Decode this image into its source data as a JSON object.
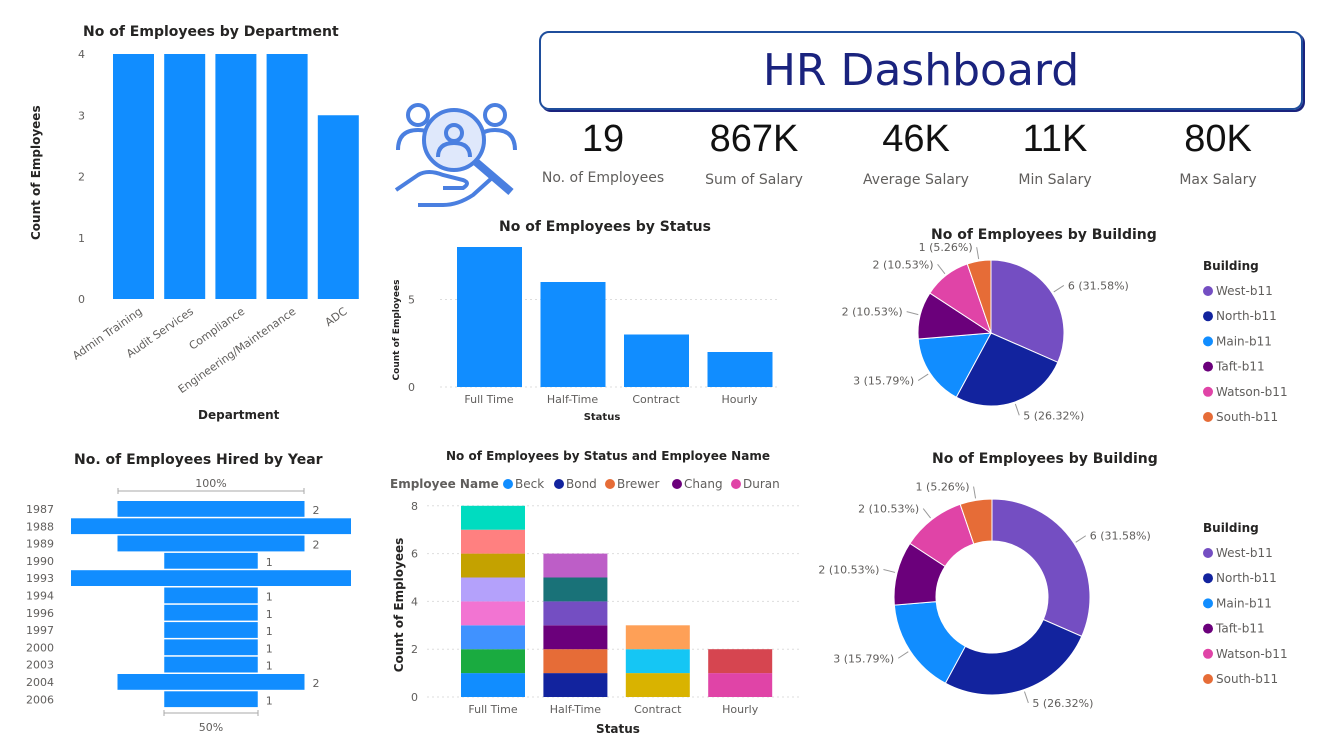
{
  "header": {
    "title": "HR Dashboard"
  },
  "kpis": [
    {
      "value": "19",
      "label": "No. of Employees"
    },
    {
      "value": "867K",
      "label": "Sum of Salary"
    },
    {
      "value": "46K",
      "label": "Average Salary"
    },
    {
      "value": "11K",
      "label": "Min Salary"
    },
    {
      "value": "80K",
      "label": "Max Salary"
    }
  ],
  "colors": {
    "bar": "#118dff",
    "header": "#1a237e"
  },
  "chart_data": [
    {
      "type": "bar",
      "title": "No of Employees by Department",
      "xlabel": "Department",
      "ylabel": "Count of Employees",
      "categories": [
        "Admin Training",
        "Audit Services",
        "Compliance",
        "Engineering/Maintenance",
        "ADC"
      ],
      "values": [
        4,
        4,
        4,
        4,
        3
      ],
      "ylim": [
        0,
        4
      ],
      "yticks": [
        "0",
        "1",
        "2",
        "3",
        "4"
      ]
    },
    {
      "type": "bar",
      "title": "No of Employees by Status",
      "xlabel": "Status",
      "ylabel": "Count of Employees",
      "categories": [
        "Full Time",
        "Half-Time",
        "Contract",
        "Hourly"
      ],
      "values": [
        8,
        6,
        3,
        2
      ],
      "ylim": [
        0,
        8
      ],
      "yticks": [
        "0",
        "5"
      ]
    },
    {
      "type": "pie",
      "title": "No of Employees by Building",
      "legend_title": "Building",
      "labels": [
        "West-b11",
        "North-b11",
        "Main-b11",
        "Taft-b11",
        "Watson-b11",
        "South-b11"
      ],
      "values": [
        6,
        5,
        3,
        2,
        2,
        1
      ],
      "data_labels": [
        "6 (31.58%)",
        "5 (26.32%)",
        "3 (15.79%)",
        "2 (10.53%)",
        "2 (10.53%)",
        "1 (5.26%)"
      ],
      "colors": [
        "#744ec2",
        "#12239e",
        "#118dff",
        "#6b007b",
        "#e044a7",
        "#e66c37"
      ]
    },
    {
      "type": "funnel",
      "title": "No. of Employees Hired by Year",
      "categories": [
        "1987",
        "1988",
        "1989",
        "1990",
        "1993",
        "1994",
        "1996",
        "1997",
        "2000",
        "2003",
        "2004",
        "2006"
      ],
      "values": [
        2,
        3,
        2,
        1,
        3,
        1,
        1,
        1,
        1,
        1,
        2,
        1
      ],
      "value_labels": [
        "2",
        "",
        "2",
        "1",
        "",
        "1",
        "1",
        "1",
        "1",
        "1",
        "2",
        "1"
      ],
      "top_label": "100%",
      "bottom_label": "50%"
    },
    {
      "type": "bar",
      "title": "No of Employees by Status and Employee Name",
      "xlabel": "Status",
      "ylabel": "Count of Employees",
      "legend_title": "Employee Name",
      "legend": [
        {
          "name": "Beck",
          "color": "#118dff"
        },
        {
          "name": "Bond",
          "color": "#12239e"
        },
        {
          "name": "Brewer",
          "color": "#e66c37"
        },
        {
          "name": "Chang",
          "color": "#6b007b"
        },
        {
          "name": "Duran",
          "color": "#e044a7"
        }
      ],
      "categories": [
        "Full Time",
        "Half-Time",
        "Contract",
        "Hourly"
      ],
      "stacks": [
        [
          "#118dff",
          "#1aab40",
          "#4092ff",
          "#f274d2",
          "#b4a1fb",
          "#c4a200",
          "#ff8080",
          "#00dcc0"
        ],
        [
          "#12239e",
          "#e66c37",
          "#6b007b",
          "#744ec2",
          "#197278",
          "#bd5ec7"
        ],
        [
          "#d9b300",
          "#15c6f4",
          "#fea057"
        ],
        [
          "#e044a7",
          "#d64550"
        ]
      ],
      "ylim": [
        0,
        8
      ],
      "yticks": [
        "0",
        "2",
        "4",
        "6",
        "8"
      ]
    },
    {
      "type": "donut",
      "title": "No of Employees by Building",
      "legend_title": "Building",
      "labels": [
        "West-b11",
        "North-b11",
        "Main-b11",
        "Taft-b11",
        "Watson-b11",
        "South-b11"
      ],
      "values": [
        6,
        5,
        3,
        2,
        2,
        1
      ],
      "data_labels": [
        "6 (31.58%)",
        "5 (26.32%)",
        "3 (15.79%)",
        "2 (10.53%)",
        "2 (10.53%)",
        "1 (5.26%)"
      ]
    }
  ]
}
